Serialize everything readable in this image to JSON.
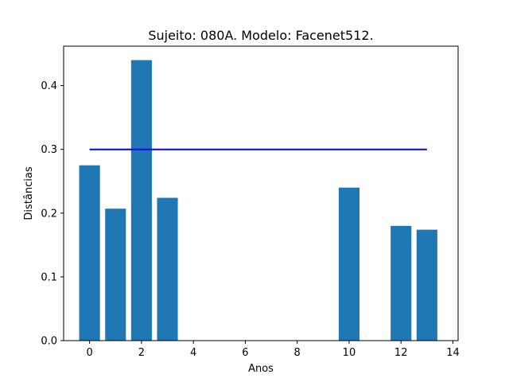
{
  "chart_data": {
    "type": "bar",
    "title": "Sujeito: 080A. Modelo: Facenet512.",
    "xlabel": "Anos",
    "ylabel": "Distâncias",
    "xlim": [
      -1.0,
      14.2
    ],
    "ylim": [
      0.0,
      0.4619
    ],
    "xticks": [
      0,
      2,
      4,
      6,
      8,
      10,
      12,
      14
    ],
    "yticks": [
      0.0,
      0.1,
      0.2,
      0.3,
      0.4
    ],
    "bar_width": 0.8,
    "bar_color": "#1f77b4",
    "x": [
      0,
      1,
      2,
      3,
      10,
      12,
      13
    ],
    "values": [
      0.275,
      0.207,
      0.44,
      0.224,
      0.24,
      0.18,
      0.174
    ],
    "threshold": {
      "x_start": 0,
      "x_end": 13,
      "y": 0.3,
      "color": "#0000ff"
    },
    "grid": false,
    "legend": "none"
  }
}
